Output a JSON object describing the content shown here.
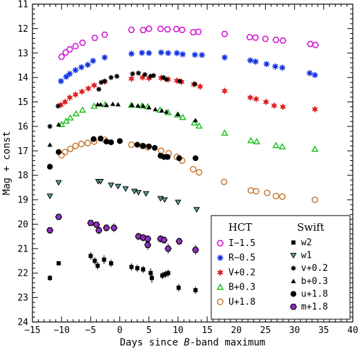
{
  "chart_data": {
    "type": "scatter",
    "xlabel": "Days since B-band maximum",
    "xlabel_parts": [
      "Days since ",
      "B",
      "-band maximum"
    ],
    "ylabel": "Mag + const",
    "xlim": [
      -15,
      40
    ],
    "ylim": [
      24,
      11
    ],
    "y_inverted": true,
    "xticks": [
      -15,
      -10,
      -5,
      0,
      5,
      10,
      15,
      20,
      25,
      30,
      35,
      40
    ],
    "yticks": [
      11,
      12,
      13,
      14,
      15,
      16,
      17,
      18,
      19,
      20,
      21,
      22,
      23,
      24
    ],
    "grid": false,
    "legend_placement": "bottom-right",
    "legend_groups": [
      "HCT",
      "Swift"
    ],
    "series": [
      {
        "name": "I−1.5",
        "group": "HCT",
        "marker": "hexagon-open",
        "color": "#d020d0",
        "x": [
          -10,
          -9.3,
          -8.6,
          -7.6,
          -6.4,
          -4.3,
          -2.6,
          2.0,
          4.0,
          5.0,
          7.0,
          8.2,
          9.7,
          10.7,
          12.6,
          13.5,
          18.0,
          22.3,
          23.3,
          25.0,
          26.8,
          28.0,
          32.7,
          33.6
        ],
        "y": [
          13.15,
          12.98,
          12.85,
          12.72,
          12.58,
          12.38,
          12.25,
          12.05,
          12.06,
          12.01,
          12.01,
          12.03,
          12.02,
          12.05,
          12.15,
          12.13,
          12.22,
          12.35,
          12.37,
          12.42,
          12.46,
          12.49,
          12.63,
          12.67
        ]
      },
      {
        "name": "R−0.5",
        "group": "HCT",
        "marker": "asterisk",
        "color": "#1030e0",
        "x": [
          -10.1,
          -9.2,
          -8.6,
          -7.6,
          -6.6,
          -5.5,
          -4.6,
          -2.6,
          2.0,
          3.8,
          5.0,
          7.1,
          8.3,
          9.8,
          10.8,
          12.9,
          14.1,
          18.0,
          22.4,
          23.3,
          25.2,
          26.7,
          27.9,
          32.6,
          33.5
        ],
        "y": [
          14.15,
          13.97,
          13.85,
          13.7,
          13.58,
          13.48,
          13.32,
          13.18,
          13.03,
          12.99,
          13.0,
          12.98,
          13.0,
          13.0,
          13.05,
          13.07,
          13.08,
          13.18,
          13.3,
          13.35,
          13.45,
          13.55,
          13.6,
          13.82,
          13.9
        ]
      },
      {
        "name": "V+0.2",
        "group": "HCT",
        "marker": "star",
        "color": "#e02020",
        "x": [
          -10.1,
          -9.4,
          -8.6,
          -7.6,
          -6.5,
          -5.4,
          -4.4,
          -2.6,
          2.0,
          3.9,
          5.0,
          7.1,
          8.3,
          9.8,
          10.6,
          12.7,
          13.8,
          18.0,
          22.4,
          23.4,
          25.1,
          26.5,
          28.0,
          33.5
        ],
        "y": [
          15.12,
          15.0,
          14.82,
          14.7,
          14.58,
          14.45,
          14.32,
          14.17,
          14.05,
          14.0,
          14.03,
          14.02,
          14.08,
          14.13,
          14.18,
          14.28,
          14.37,
          14.55,
          14.82,
          14.88,
          15.0,
          15.15,
          15.2,
          15.3
        ]
      },
      {
        "name": "B+0.3",
        "group": "HCT",
        "marker": "triangle-up-open",
        "color": "#20c020",
        "x": [
          -10.0,
          -9.2,
          -8.5,
          -7.5,
          -6.4,
          -4.4,
          -2.5,
          2.0,
          3.8,
          4.8,
          6.9,
          8.3,
          9.9,
          10.8,
          12.8,
          13.6,
          18.0,
          22.5,
          23.5,
          26.8,
          27.9,
          33.5
        ],
        "y": [
          15.92,
          15.78,
          15.65,
          15.48,
          15.33,
          15.17,
          15.11,
          15.13,
          15.16,
          15.19,
          15.33,
          15.43,
          15.53,
          15.63,
          15.85,
          15.98,
          16.27,
          16.58,
          16.62,
          16.78,
          16.83,
          16.93
        ]
      },
      {
        "name": "U+1.8",
        "group": "HCT",
        "marker": "circle-open",
        "color": "#c87830",
        "x": [
          -10.0,
          -9.4,
          -8.5,
          -7.6,
          -6.6,
          -5.5,
          -4.4,
          -2.6,
          2.0,
          3.9,
          4.8,
          7.1,
          8.4,
          9.8,
          10.7,
          12.6,
          13.6,
          17.9,
          22.5,
          23.4,
          25.3,
          26.8,
          27.9,
          33.5
        ],
        "y": [
          17.18,
          17.05,
          16.92,
          16.8,
          16.72,
          16.68,
          16.62,
          16.55,
          16.75,
          16.8,
          16.85,
          17.0,
          17.1,
          17.25,
          17.4,
          17.75,
          17.88,
          18.27,
          18.62,
          18.65,
          18.72,
          18.85,
          18.87,
          19.0
        ]
      }
    ],
    "swift_series": [
      {
        "name": "w2",
        "group": "Swift",
        "marker": "square",
        "color": "#000000",
        "x": [
          -12.0,
          -10.5,
          -5.0,
          -4.3,
          -3.8,
          -2.7,
          -1.5,
          2.0,
          3.0,
          4.0,
          5.3,
          5.5,
          7.3,
          7.8,
          8.3,
          10.1,
          13.0
        ],
        "y": [
          22.2,
          21.6,
          21.3,
          21.5,
          21.7,
          21.45,
          21.6,
          21.75,
          21.8,
          21.85,
          22.0,
          22.2,
          22.1,
          22.05,
          22.0,
          22.6,
          22.7
        ]
      },
      {
        "name": "w1",
        "group": "Swift",
        "marker": "triangle-down-filled",
        "color": "#5aa0a0",
        "x": [
          -12.0,
          -10.5,
          -3.7,
          -3.3,
          -1.5,
          -0.3,
          1.0,
          2.5,
          3.2,
          4.5,
          7.0,
          7.7,
          10.0,
          13.2
        ],
        "y": [
          18.85,
          18.3,
          18.25,
          18.25,
          18.4,
          18.45,
          18.55,
          18.65,
          18.7,
          18.75,
          18.95,
          19.0,
          19.1,
          19.4
        ]
      },
      {
        "name": "v+0.2",
        "group": "Swift",
        "marker": "asterisk-black",
        "color": "#000000",
        "x": [
          -12.0,
          -10.6,
          -3.6,
          -3.2,
          -2.6,
          -1.5,
          -0.5,
          2.2,
          3.2,
          4.3,
          5.3,
          5.8,
          7.5,
          8.0,
          10.3,
          12.9
        ],
        "y": [
          16.0,
          15.17,
          14.48,
          14.2,
          14.15,
          14.0,
          13.95,
          13.85,
          13.82,
          13.88,
          13.95,
          13.92,
          14.0,
          14.08,
          14.15,
          14.27
        ]
      },
      {
        "name": "b+0.3",
        "group": "Swift",
        "marker": "triangle-up-filled",
        "color": "#000000",
        "x": [
          -12.0,
          -10.5,
          -3.8,
          -3.3,
          -2.3,
          -1.2,
          -0.3,
          2.1,
          3.1,
          4.0,
          5.0,
          6.1,
          7.2,
          8.0,
          10.0,
          13.0
        ],
        "y": [
          16.75,
          15.92,
          15.1,
          15.1,
          15.12,
          15.08,
          15.1,
          15.12,
          15.15,
          15.15,
          15.22,
          15.3,
          15.35,
          15.4,
          15.5,
          15.75
        ]
      },
      {
        "name": "u+1.8",
        "group": "Swift",
        "marker": "circle-filled",
        "color": "#000000",
        "x": [
          -12.0,
          -10.5,
          -4.5,
          -3.3,
          -2.3,
          -1.5,
          0.0,
          3.0,
          4.0,
          5.0,
          6.0,
          7.0,
          7.6,
          8.2,
          10.2,
          13.0
        ],
        "y": [
          17.65,
          17.05,
          16.52,
          16.5,
          16.62,
          16.65,
          16.6,
          16.75,
          16.8,
          16.82,
          16.88,
          17.2,
          17.25,
          17.25,
          17.3,
          17.3
        ]
      },
      {
        "name": "m+1.8",
        "group": "Swift",
        "marker": "hexagon-filled",
        "color": "#9030c0",
        "x": [
          -12.0,
          -10.5,
          -5.0,
          -4.0,
          -3.6,
          -2.3,
          -1.0,
          3.2,
          4.0,
          4.8,
          4.8,
          7.0,
          7.6,
          8.3,
          10.2,
          13.0
        ],
        "y": [
          20.25,
          19.7,
          19.95,
          20.02,
          20.25,
          20.15,
          20.15,
          20.5,
          20.55,
          20.6,
          20.85,
          20.6,
          20.65,
          21.0,
          20.7,
          21.05
        ]
      }
    ],
    "error_bars_swift": {
      "w2": [
        0.12,
        0.08,
        0.15,
        0.15,
        0.15,
        0.18,
        0.15,
        0.15,
        0.15,
        0.15,
        0.2,
        0.2,
        0.15,
        0.15,
        0.15,
        0.15,
        0.15
      ],
      "w1": [
        0.08,
        0.06,
        0.08,
        0.08,
        0.08,
        0.08,
        0.08,
        0.08,
        0.08,
        0.08,
        0.08,
        0.08,
        0.08,
        0.1
      ],
      "m+1.8": [
        0.12,
        0.08,
        0.1,
        0.1,
        0.15,
        0.15,
        0.18,
        0.15,
        0.15,
        0.15,
        0.2,
        0.15,
        0.15,
        0.2,
        0.15,
        0.2
      ]
    }
  }
}
